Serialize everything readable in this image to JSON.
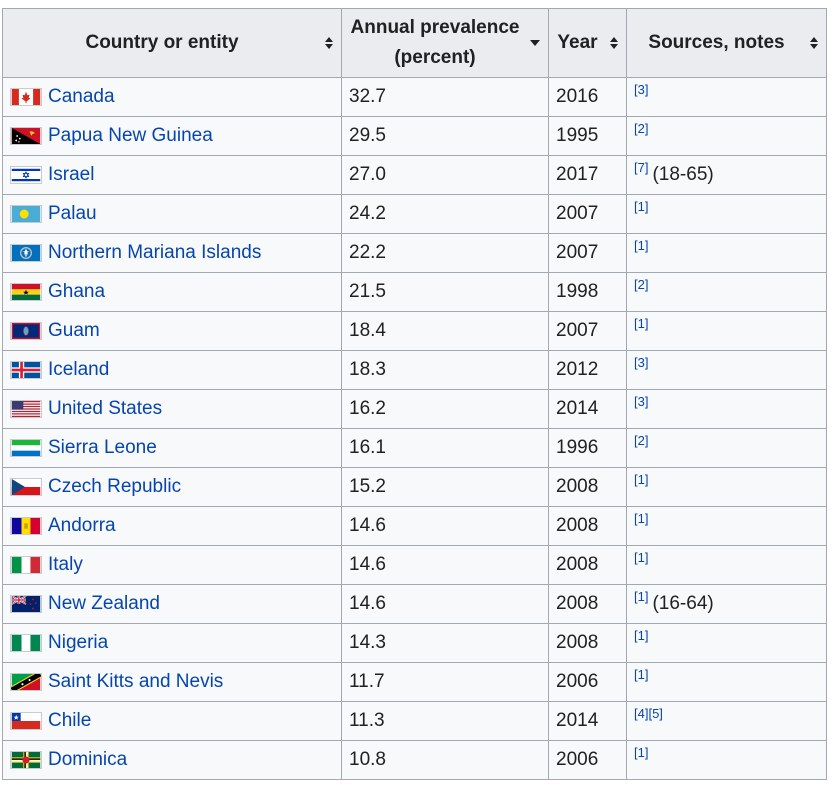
{
  "table": {
    "headers": [
      {
        "label": "Country or entity",
        "sort": "both"
      },
      {
        "label": "Annual prevalence (percent)",
        "sort": "desc"
      },
      {
        "label": "Year",
        "sort": "both"
      },
      {
        "label": "Sources, notes",
        "sort": "both"
      }
    ],
    "rows": [
      {
        "country": "Canada",
        "flag": "canada-flag",
        "value": "32.7",
        "year": "2016",
        "ref": "[3]",
        "note": ""
      },
      {
        "country": "Papua New Guinea",
        "flag": "papua-new-guinea-flag",
        "value": "29.5",
        "year": "1995",
        "ref": "[2]",
        "note": ""
      },
      {
        "country": "Israel",
        "flag": "israel-flag",
        "value": "27.0",
        "year": "2017",
        "ref": "[7]",
        "note": "(18-65)"
      },
      {
        "country": "Palau",
        "flag": "palau-flag",
        "value": "24.2",
        "year": "2007",
        "ref": "[1]",
        "note": ""
      },
      {
        "country": "Northern Mariana Islands",
        "flag": "northern-mariana-islands-flag",
        "value": "22.2",
        "year": "2007",
        "ref": "[1]",
        "note": ""
      },
      {
        "country": "Ghana",
        "flag": "ghana-flag",
        "value": "21.5",
        "year": "1998",
        "ref": "[2]",
        "note": ""
      },
      {
        "country": "Guam",
        "flag": "guam-flag",
        "value": "18.4",
        "year": "2007",
        "ref": "[1]",
        "note": ""
      },
      {
        "country": "Iceland",
        "flag": "iceland-flag",
        "value": "18.3",
        "year": "2012",
        "ref": "[3]",
        "note": ""
      },
      {
        "country": "United States",
        "flag": "united-states-flag",
        "value": "16.2",
        "year": "2014",
        "ref": "[3]",
        "note": ""
      },
      {
        "country": "Sierra Leone",
        "flag": "sierra-leone-flag",
        "value": "16.1",
        "year": "1996",
        "ref": "[2]",
        "note": ""
      },
      {
        "country": "Czech Republic",
        "flag": "czech-republic-flag",
        "value": "15.2",
        "year": "2008",
        "ref": "[1]",
        "note": ""
      },
      {
        "country": "Andorra",
        "flag": "andorra-flag",
        "value": "14.6",
        "year": "2008",
        "ref": "[1]",
        "note": ""
      },
      {
        "country": "Italy",
        "flag": "italy-flag",
        "value": "14.6",
        "year": "2008",
        "ref": "[1]",
        "note": ""
      },
      {
        "country": "New Zealand",
        "flag": "new-zealand-flag",
        "value": "14.6",
        "year": "2008",
        "ref": "[1]",
        "note": "(16-64)"
      },
      {
        "country": "Nigeria",
        "flag": "nigeria-flag",
        "value": "14.3",
        "year": "2008",
        "ref": "[1]",
        "note": ""
      },
      {
        "country": "Saint Kitts and Nevis",
        "flag": "saint-kitts-and-nevis-flag",
        "value": "11.7",
        "year": "2006",
        "ref": "[1]",
        "note": ""
      },
      {
        "country": "Chile",
        "flag": "chile-flag",
        "value": "11.3",
        "year": "2014",
        "ref": "[4][5]",
        "note": ""
      },
      {
        "country": "Dominica",
        "flag": "dominica-flag",
        "value": "10.8",
        "year": "2006",
        "ref": "[1]",
        "note": ""
      }
    ]
  },
  "colors": {
    "link": "#0645ad",
    "header_bg": "#eaecf0",
    "cell_bg": "#f8f9fa",
    "border": "#a2a9b1"
  }
}
